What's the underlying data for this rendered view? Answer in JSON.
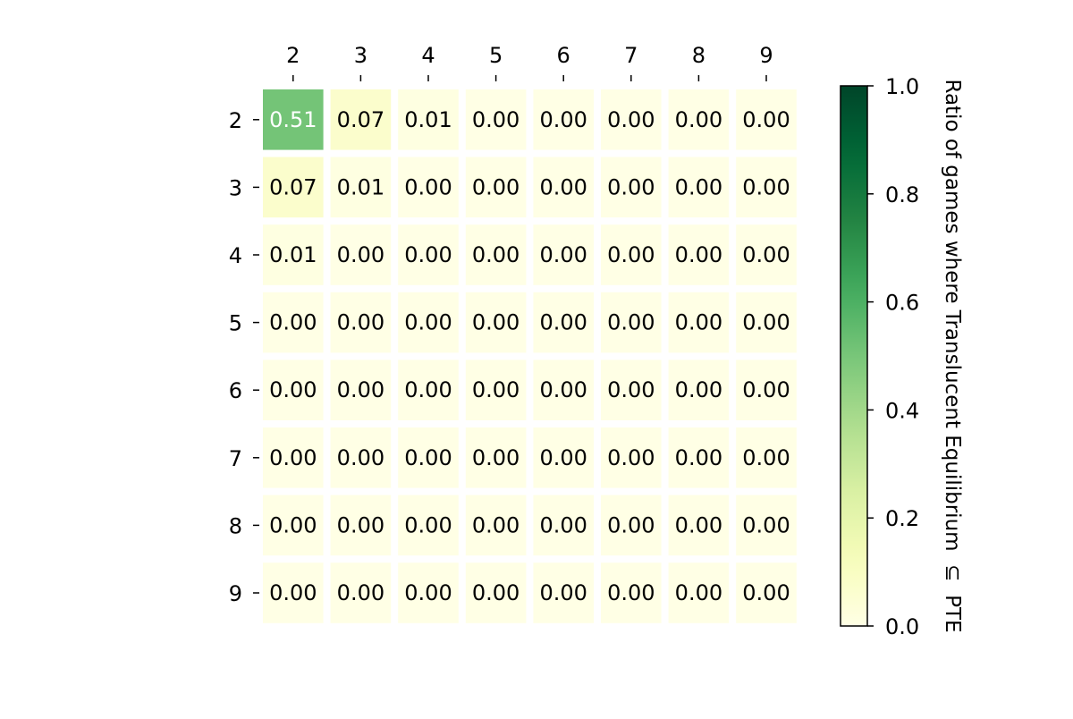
{
  "chart_data": {
    "type": "heatmap",
    "title": "",
    "xlabel": "",
    "ylabel": "",
    "x_categories": [
      "2",
      "3",
      "4",
      "5",
      "6",
      "7",
      "8",
      "9"
    ],
    "y_categories": [
      "2",
      "3",
      "4",
      "5",
      "6",
      "7",
      "8",
      "9"
    ],
    "x_tick_position": "top",
    "values": [
      [
        0.51,
        0.07,
        0.01,
        0.0,
        0.0,
        0.0,
        0.0,
        0.0
      ],
      [
        0.07,
        0.01,
        0.0,
        0.0,
        0.0,
        0.0,
        0.0,
        0.0
      ],
      [
        0.01,
        0.0,
        0.0,
        0.0,
        0.0,
        0.0,
        0.0,
        0.0
      ],
      [
        0.0,
        0.0,
        0.0,
        0.0,
        0.0,
        0.0,
        0.0,
        0.0
      ],
      [
        0.0,
        0.0,
        0.0,
        0.0,
        0.0,
        0.0,
        0.0,
        0.0
      ],
      [
        0.0,
        0.0,
        0.0,
        0.0,
        0.0,
        0.0,
        0.0,
        0.0
      ],
      [
        0.0,
        0.0,
        0.0,
        0.0,
        0.0,
        0.0,
        0.0,
        0.0
      ],
      [
        0.0,
        0.0,
        0.0,
        0.0,
        0.0,
        0.0,
        0.0,
        0.0
      ]
    ],
    "value_format_decimals": 2,
    "colormap": "YlGn",
    "colorbar": {
      "label": "Ratio of games where Translucent Equilibrium  ⊆  PTE",
      "range": [
        0.0,
        1.0
      ],
      "ticks": [
        "0.0",
        "0.2",
        "0.4",
        "0.6",
        "0.8",
        "1.0"
      ],
      "placement": "right"
    },
    "grid": false,
    "cell_gap_color": "#ffffff"
  }
}
